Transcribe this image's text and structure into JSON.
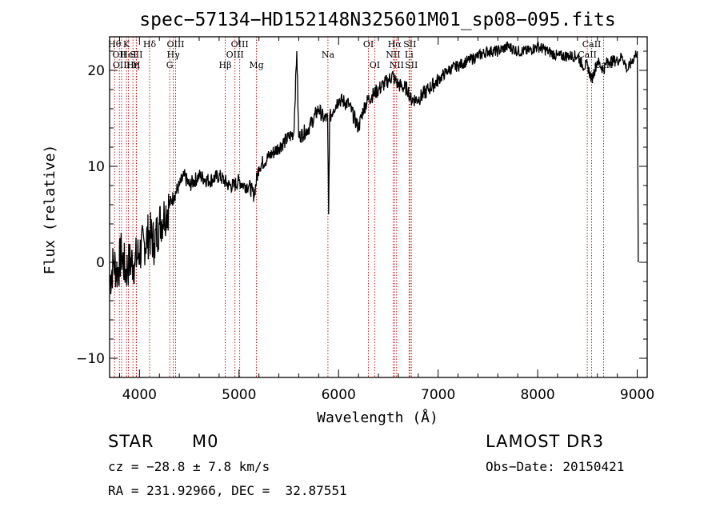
{
  "chart_data": {
    "type": "line",
    "title": "spec−57134−HD152148N325601M01_sp08−095.fits",
    "xlabel": "Wavelength (Å)",
    "ylabel": "Flux (relative)",
    "xlim": [
      3700,
      9100
    ],
    "ylim": [
      -12,
      23.5
    ],
    "xticks": [
      4000,
      5000,
      6000,
      7000,
      8000,
      9000
    ],
    "yticks": [
      -10,
      0,
      10,
      20
    ],
    "series": [
      {
        "name": "spectrum",
        "x": [
          3700,
          3740,
          3780,
          3820,
          3860,
          3900,
          3950,
          4000,
          4050,
          4100,
          4150,
          4200,
          4250,
          4300,
          4350,
          4400,
          4450,
          4500,
          4600,
          4700,
          4800,
          4850,
          4900,
          4950,
          5000,
          5050,
          5100,
          5150,
          5200,
          5300,
          5400,
          5500,
          5550,
          5580,
          5600,
          5700,
          5800,
          5850,
          5890,
          5900,
          5910,
          5950,
          6000,
          6100,
          6200,
          6250,
          6300,
          6350,
          6400,
          6450,
          6500,
          6550,
          6563,
          6600,
          6700,
          6720,
          6800,
          6900,
          7000,
          7100,
          7200,
          7300,
          7400,
          7500,
          7600,
          7700,
          7800,
          7900,
          8000,
          8100,
          8200,
          8300,
          8400,
          8450,
          8500,
          8542,
          8600,
          8662,
          8700,
          8800,
          8850,
          8900,
          8950,
          9000,
          9010
        ],
        "y": [
          -2,
          0,
          -1,
          1,
          -1,
          0,
          0,
          1,
          2,
          3,
          2,
          4,
          5,
          6,
          7,
          8,
          9,
          8,
          9,
          8.5,
          9,
          8.5,
          8,
          8,
          8.5,
          8,
          8,
          7,
          10,
          11,
          12,
          13,
          13.5,
          22,
          13,
          14,
          16,
          15,
          15,
          5,
          15,
          16,
          17,
          16.5,
          14,
          16,
          17,
          17.5,
          18,
          18.5,
          19,
          19.5,
          19,
          18.5,
          18,
          17,
          17,
          18,
          19,
          20,
          20.5,
          21,
          21.5,
          22,
          22,
          22.5,
          22,
          22,
          22.5,
          22,
          21.5,
          21.5,
          21.5,
          20.5,
          20.5,
          19,
          21,
          20,
          21,
          21,
          21.5,
          20,
          21,
          22,
          0
        ]
      }
    ],
    "lines": [
      {
        "wave": 3750,
        "label": "Hθ",
        "row": 1
      },
      {
        "wave": 3798,
        "label": "OII",
        "row": 2
      },
      {
        "wave": 3820,
        "label": "OIII",
        "row": 3
      },
      {
        "wave": 3869,
        "label": "K",
        "row": 1
      },
      {
        "wave": 3889,
        "label": "HeI",
        "row": 2
      },
      {
        "wave": 3934,
        "label": "Hη",
        "row": 3
      },
      {
        "wave": 3968,
        "label": "SII",
        "row": 2
      },
      {
        "wave": 3970,
        "label": "H",
        "row": 3
      },
      {
        "wave": 4102,
        "label": "Hδ",
        "row": 1
      },
      {
        "wave": 4304,
        "label": "G",
        "row": 3
      },
      {
        "wave": 4340,
        "label": "Hγ",
        "row": 2
      },
      {
        "wave": 4363,
        "label": "OIII",
        "row": 1
      },
      {
        "wave": 4861,
        "label": "Hβ",
        "row": 3
      },
      {
        "wave": 4959,
        "label": "OIII",
        "row": 2
      },
      {
        "wave": 5007,
        "label": "OIII",
        "row": 1
      },
      {
        "wave": 5175,
        "label": "Mg",
        "row": 3
      },
      {
        "wave": 5893,
        "label": "Na",
        "row": 2
      },
      {
        "wave": 6300,
        "label": "OI",
        "row": 1
      },
      {
        "wave": 6363,
        "label": "OI",
        "row": 3
      },
      {
        "wave": 6548,
        "label": "NII",
        "row": 2
      },
      {
        "wave": 6563,
        "label": "Hα",
        "row": 1
      },
      {
        "wave": 6583,
        "label": "NII",
        "row": 3
      },
      {
        "wave": 6708,
        "label": "Li",
        "row": 2
      },
      {
        "wave": 6716,
        "label": "SII",
        "row": 1
      },
      {
        "wave": 6731,
        "label": "SII",
        "row": 3
      },
      {
        "wave": 8498,
        "label": "CaII",
        "row": 2
      },
      {
        "wave": 8542,
        "label": "CaII",
        "row": 1
      },
      {
        "wave": 8662,
        "label": "CaII",
        "row": 3
      }
    ]
  },
  "info": {
    "class_label": "STAR",
    "subclass": "M0",
    "survey": "LAMOST DR3",
    "cz": "cz = −28.8 ± 7.8 km/s",
    "obs_date": "Obs−Date: 20150421",
    "coords": "RA = 231.92966, DEC =  32.87551"
  }
}
